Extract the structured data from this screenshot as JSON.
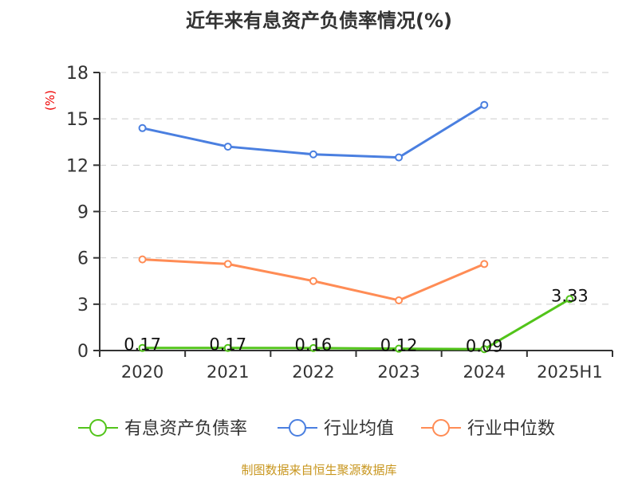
{
  "chart_data": {
    "type": "line",
    "title": "近年来有息资产负债率情况(%)",
    "ylabel": "(%)",
    "xlabel": "",
    "categories": [
      "2020",
      "2021",
      "2022",
      "2023",
      "2024",
      "2025H1"
    ],
    "ylim": [
      0,
      18
    ],
    "yticks": [
      0,
      3,
      6,
      9,
      12,
      15,
      18
    ],
    "grid": true,
    "legend_position": "bottom",
    "series": [
      {
        "name": "有息资产负债率",
        "color": "#52c41a",
        "values": [
          0.17,
          0.17,
          0.16,
          0.12,
          0.09,
          3.33
        ],
        "labels": [
          "0.17",
          "0.17",
          "0.16",
          "0.12",
          "0.09",
          "3.33"
        ]
      },
      {
        "name": "行业均值",
        "color": "#4a7fe0",
        "values": [
          14.4,
          13.2,
          12.7,
          12.5,
          15.9,
          null
        ]
      },
      {
        "name": "行业中位数",
        "color": "#ff8c55",
        "values": [
          5.9,
          5.6,
          4.5,
          3.25,
          5.6,
          null
        ]
      }
    ]
  },
  "footer": "制图数据来自恒生聚源数据库"
}
